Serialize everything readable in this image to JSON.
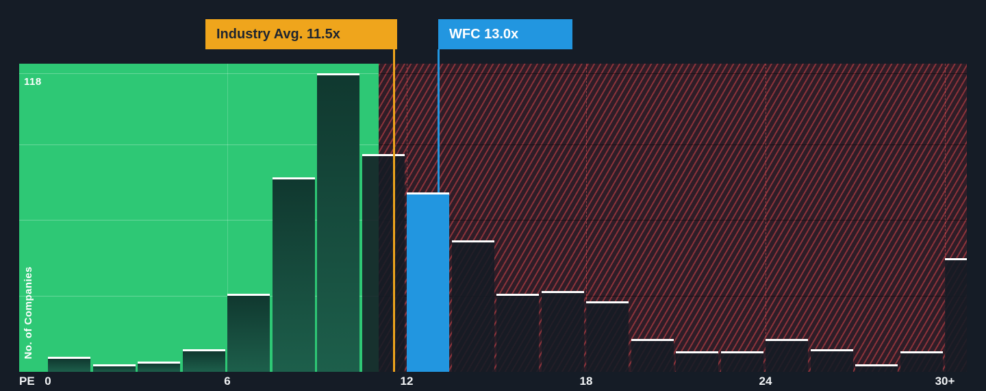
{
  "colors": {
    "background": "#151C26",
    "below_avg_region_green": "#2EC875",
    "above_avg_hatch_red": "#E0474D",
    "bar_below_avg_dark_green": "#1D5F4B",
    "bar_above_avg_dark_navy": "#1A212C",
    "bar_top_edge": "#FFFFFF",
    "highlight_blue": "#2296E0",
    "industry_avg_gold": "#EFA51C"
  },
  "chart_data": {
    "type": "bar",
    "xlabel": "PE",
    "ylabel": "No. of Companies",
    "y_max_label": "118",
    "x_tick_labels": [
      "0",
      "6",
      "12",
      "18",
      "24",
      "30+"
    ],
    "x_tick_values": [
      0,
      6,
      12,
      18,
      24,
      30
    ],
    "bin_width_pe": 1.5,
    "first_bin_start_pe": 0,
    "values": [
      6,
      3,
      4,
      9,
      31,
      77,
      118,
      86,
      71,
      52,
      31,
      32,
      28,
      13,
      8,
      8,
      13,
      9,
      3,
      8,
      45
    ],
    "ylim": [
      0,
      122
    ],
    "gridline_values": [
      30,
      60,
      90,
      118
    ],
    "highlight": {
      "index": 8,
      "name": "WFC",
      "pe": 13.0
    },
    "annotations": [
      {
        "name": "industry-average",
        "label": "Industry Avg. 11.5x",
        "pe": 11.5
      },
      {
        "name": "company-marker",
        "label": "WFC 13.0x",
        "pe": 13.0
      }
    ],
    "regions": [
      {
        "name": "below-industry-average",
        "style": "solid-green"
      },
      {
        "name": "above-industry-average",
        "style": "red-diagonal-hatch"
      }
    ],
    "legend": "none",
    "grid": "on"
  }
}
